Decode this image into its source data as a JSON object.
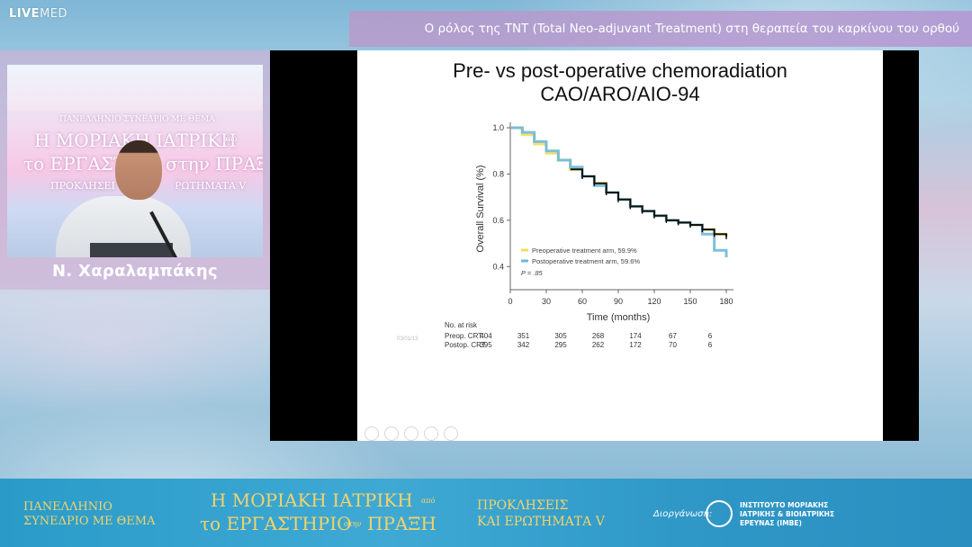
{
  "brand": {
    "live": "LIVE",
    "med": "MED"
  },
  "header": {
    "title": "Ο ρόλος της TNT (Total Neo-adjuvant Treatment) στη θεραπεία του καρκίνου του ορθού"
  },
  "speaker": {
    "name": "Ν. Χαραλαμπάκης",
    "backdrop": {
      "line1": "ΠΑΝΕΛΛΗΝΙΟ ΣΥΝΕΔΡΙΟ ΜΕ ΘΕΜΑ",
      "line2": "Η ΜΟΡΙΑΚΗ ΙΑΤΡΙΚΗ",
      "line2b": "από",
      "line3": "το ΕΡΓΑΣΤΗ",
      "line3b": "στην ΠΡΑΞΗ",
      "line4": "ΠΡΟΚΛΗΣΕΙ",
      "line4b": "ΡΩΤΗΜΑΤΑ V"
    }
  },
  "slide": {
    "title_line1": "Pre- vs post-operative chemoradiation",
    "title_line2": "CAO/ARO/AIO-94",
    "date_stamp": "03/01/13"
  },
  "chart_data": {
    "type": "line",
    "ylabel": "Overall Survival (%)",
    "xlabel": "Time (months)",
    "xlim": [
      0,
      180
    ],
    "ylim": [
      0.3,
      1.0
    ],
    "x_ticks": [
      "0",
      "30",
      "60",
      "90",
      "120",
      "150",
      "180"
    ],
    "y_ticks": [
      "1.0",
      "0.8",
      "0.6",
      "0.4"
    ],
    "legend": {
      "position": "bottom-left",
      "p_value": "P = .85"
    },
    "series": [
      {
        "name": "Preoperative treatment arm, 59.9%",
        "color": "#f0e05a",
        "x": [
          0,
          10,
          20,
          30,
          40,
          50,
          60,
          70,
          80,
          90,
          100,
          110,
          120,
          130,
          140,
          150,
          160,
          170,
          180
        ],
        "y": [
          1.0,
          0.97,
          0.93,
          0.89,
          0.86,
          0.82,
          0.79,
          0.76,
          0.72,
          0.69,
          0.66,
          0.64,
          0.62,
          0.6,
          0.59,
          0.58,
          0.56,
          0.54,
          0.53
        ]
      },
      {
        "name": "Postoperative treatment arm, 59.6%",
        "color": "#6fb8dc",
        "x": [
          0,
          10,
          20,
          30,
          40,
          50,
          60,
          70,
          80,
          90,
          100,
          110,
          120,
          130,
          140,
          150,
          160,
          170,
          180
        ],
        "y": [
          1.0,
          0.98,
          0.94,
          0.9,
          0.86,
          0.83,
          0.79,
          0.75,
          0.72,
          0.69,
          0.66,
          0.64,
          0.62,
          0.6,
          0.59,
          0.58,
          0.54,
          0.47,
          0.44
        ]
      }
    ],
    "risk_table": {
      "header": "No. at risk",
      "rows": [
        {
          "label": "Preop. CRT",
          "values": [
            "404",
            "351",
            "305",
            "268",
            "174",
            "67",
            "6"
          ]
        },
        {
          "label": "Postop. CRT",
          "values": [
            "395",
            "342",
            "295",
            "262",
            "172",
            "70",
            "6"
          ]
        }
      ]
    }
  },
  "banner": {
    "left_line1": "ΠΑΝΕΛΛΗΝΙΟ",
    "left_line2": "ΣΥΝΕΔΡΙΟ ΜΕ ΘΕΜΑ",
    "mid_line1": "Η ΜΟΡΙΑΚΗ ΙΑΤΡΙΚΗ",
    "mid_line1b": "από",
    "mid_line2": "το ΕΡΓΑΣΤΗΡΙΟ",
    "mid_line2b": "στην",
    "mid_line2c": "ΠΡΑΞΗ",
    "right_line1": "ΠΡΟΚΛΗΣΕΙΣ",
    "right_line2": "ΚΑΙ ΕΡΩΤΗΜΑΤΑ V",
    "organizer_label": "Διοργάνωση:",
    "organizer_line1": "ΙΝΣΤΙΤΟΥΤΟ ΜΟΡΙΑΚΗΣ",
    "organizer_line2": "ΙΑΤΡΙΚΗΣ & ΒΙΟΙΑΤΡΙΚΗΣ",
    "organizer_line3": "ΕΡΕΥΝΑΣ (ΙΜΒΕ)"
  }
}
